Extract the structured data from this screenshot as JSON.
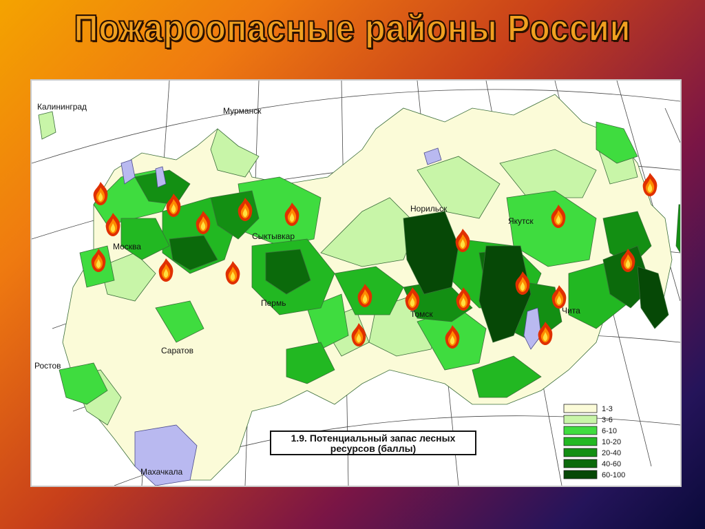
{
  "title": "Пожароопасные районы России",
  "map": {
    "cities": [
      {
        "name": "Калининград"
      },
      {
        "name": "Мурманск"
      },
      {
        "name": "Москва"
      },
      {
        "name": "Сыктывкар"
      },
      {
        "name": "Пермь"
      },
      {
        "name": "Саратов"
      },
      {
        "name": "Ростов"
      },
      {
        "name": "Махачкала"
      },
      {
        "name": "Норильск"
      },
      {
        "name": "Якутск"
      },
      {
        "name": "Томск"
      },
      {
        "name": "Чита"
      }
    ],
    "caption_line1": "1.9. Потенциальный запас лесных",
    "caption_line2": "ресурсов (баллы)",
    "legend": [
      {
        "label": "1-3",
        "color": "#fbfbd8"
      },
      {
        "label": "3-6",
        "color": "#c8f5a8"
      },
      {
        "label": "6-10",
        "color": "#3fdc3f"
      },
      {
        "label": "10-20",
        "color": "#22b822"
      },
      {
        "label": "20-40",
        "color": "#138f13"
      },
      {
        "label": "40-60",
        "color": "#0b6a0b"
      },
      {
        "label": "60-100",
        "color": "#064806"
      }
    ],
    "fire_icon": "fire-icon",
    "colors": {
      "water": "#b9b9f0",
      "grid": "#4a4a4a"
    }
  }
}
